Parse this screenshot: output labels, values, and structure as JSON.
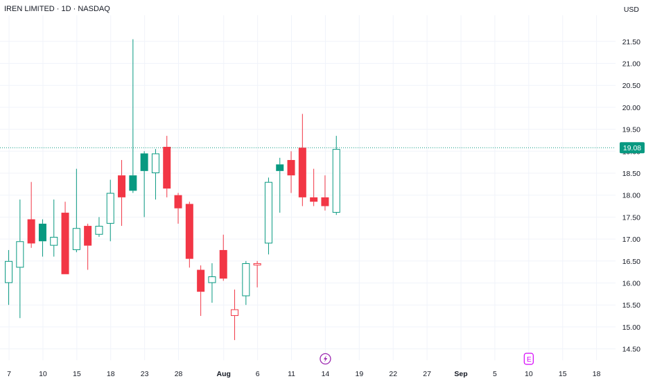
{
  "header": {
    "title": "IREN LIMITED · 1D · NASDAQ",
    "currency": "USD"
  },
  "colors": {
    "up": "#089981",
    "down": "#F23645",
    "grid": "#F0F3FA",
    "price_line": "#089981"
  },
  "icons": {
    "dividend_marker": "lightning-icon",
    "earnings_marker": "earnings-e-icon",
    "dividend_label": "⚡",
    "earnings_label": "E"
  },
  "chart_data": {
    "type": "candlestick",
    "title": "IREN LIMITED · 1D · NASDAQ",
    "current_price": 19.08,
    "current_price_label": "19.08",
    "ylim": [
      14.2,
      22.0
    ],
    "y_ticks": [
      14.5,
      15.0,
      15.5,
      16.0,
      16.5,
      17.0,
      17.5,
      18.0,
      18.5,
      19.0,
      19.5,
      20.0,
      20.5,
      21.0,
      21.5
    ],
    "y_tick_labels": [
      "14.50",
      "15.00",
      "15.50",
      "16.00",
      "16.50",
      "17.00",
      "17.50",
      "18.00",
      "18.50",
      "19.00",
      "19.50",
      "20.00",
      "20.50",
      "21.00",
      "21.50"
    ],
    "x_labels": [
      {
        "text": "7",
        "slot": 0.8,
        "bold": false
      },
      {
        "text": "10",
        "slot": 3.8,
        "bold": false
      },
      {
        "text": "15",
        "slot": 6.8,
        "bold": false
      },
      {
        "text": "18",
        "slot": 9.8,
        "bold": false
      },
      {
        "text": "23",
        "slot": 12.8,
        "bold": false
      },
      {
        "text": "28",
        "slot": 15.8,
        "bold": false
      },
      {
        "text": "Aug",
        "slot": 19.8,
        "bold": true
      },
      {
        "text": "6",
        "slot": 22.8,
        "bold": false
      },
      {
        "text": "11",
        "slot": 25.8,
        "bold": false
      },
      {
        "text": "14",
        "slot": 28.8,
        "bold": false
      },
      {
        "text": "19",
        "slot": 31.8,
        "bold": false
      },
      {
        "text": "22",
        "slot": 34.8,
        "bold": false
      },
      {
        "text": "27",
        "slot": 37.8,
        "bold": false
      },
      {
        "text": "Sep",
        "slot": 40.8,
        "bold": true
      },
      {
        "text": "5",
        "slot": 43.8,
        "bold": false
      },
      {
        "text": "10",
        "slot": 46.8,
        "bold": false
      },
      {
        "text": "15",
        "slot": 49.8,
        "bold": false
      },
      {
        "text": "18",
        "slot": 52.8,
        "bold": false
      }
    ],
    "candles": [
      {
        "o": 16.5,
        "h": 16.75,
        "l": 15.5,
        "c": 16.0,
        "style": "hollow-up"
      },
      {
        "o": 16.35,
        "h": 17.9,
        "l": 15.2,
        "c": 16.95,
        "style": "hollow-up"
      },
      {
        "o": 17.45,
        "h": 18.3,
        "l": 16.8,
        "c": 16.9,
        "style": "filled-down"
      },
      {
        "o": 16.95,
        "h": 17.45,
        "l": 16.6,
        "c": 17.35,
        "style": "filled-up"
      },
      {
        "o": 16.85,
        "h": 17.9,
        "l": 16.6,
        "c": 17.05,
        "style": "hollow-up"
      },
      {
        "o": 17.6,
        "h": 17.85,
        "l": 16.2,
        "c": 16.2,
        "style": "filled-down"
      },
      {
        "o": 16.75,
        "h": 18.6,
        "l": 16.7,
        "c": 17.25,
        "style": "hollow-up"
      },
      {
        "o": 17.3,
        "h": 17.35,
        "l": 16.3,
        "c": 16.85,
        "style": "filled-down"
      },
      {
        "o": 17.1,
        "h": 17.5,
        "l": 17.05,
        "c": 17.3,
        "style": "hollow-up"
      },
      {
        "o": 17.35,
        "h": 18.35,
        "l": 16.95,
        "c": 18.05,
        "style": "hollow-up"
      },
      {
        "o": 18.45,
        "h": 18.8,
        "l": 17.3,
        "c": 17.95,
        "style": "filled-down"
      },
      {
        "o": 18.1,
        "h": 21.55,
        "l": 18.05,
        "c": 18.45,
        "style": "filled-up"
      },
      {
        "o": 18.55,
        "h": 19.0,
        "l": 17.5,
        "c": 18.95,
        "style": "filled-up"
      },
      {
        "o": 18.5,
        "h": 19.05,
        "l": 17.9,
        "c": 18.95,
        "style": "hollow-up"
      },
      {
        "o": 19.1,
        "h": 19.35,
        "l": 17.95,
        "c": 18.15,
        "style": "filled-down"
      },
      {
        "o": 18.0,
        "h": 18.05,
        "l": 17.35,
        "c": 17.7,
        "style": "filled-down"
      },
      {
        "o": 17.8,
        "h": 17.85,
        "l": 16.35,
        "c": 16.55,
        "style": "filled-down"
      },
      {
        "o": 16.3,
        "h": 16.4,
        "l": 15.25,
        "c": 15.8,
        "style": "filled-down"
      },
      {
        "o": 16.0,
        "h": 16.45,
        "l": 15.55,
        "c": 16.15,
        "style": "hollow-up"
      },
      {
        "o": 16.75,
        "h": 17.1,
        "l": 16.05,
        "c": 16.1,
        "style": "filled-down"
      },
      {
        "o": 15.4,
        "h": 15.85,
        "l": 14.7,
        "c": 15.25,
        "style": "hollow-down"
      },
      {
        "o": 15.7,
        "h": 16.5,
        "l": 15.5,
        "c": 16.45,
        "style": "hollow-up"
      },
      {
        "o": 16.45,
        "h": 16.5,
        "l": 15.9,
        "c": 16.4,
        "style": "hollow-down"
      },
      {
        "o": 16.9,
        "h": 18.4,
        "l": 16.65,
        "c": 18.3,
        "style": "hollow-up"
      },
      {
        "o": 18.55,
        "h": 18.85,
        "l": 17.6,
        "c": 18.7,
        "style": "filled-up"
      },
      {
        "o": 18.8,
        "h": 19.0,
        "l": 18.05,
        "c": 18.45,
        "style": "filled-down"
      },
      {
        "o": 19.08,
        "h": 19.85,
        "l": 17.75,
        "c": 17.95,
        "style": "filled-down"
      },
      {
        "o": 17.95,
        "h": 18.6,
        "l": 17.75,
        "c": 17.85,
        "style": "filled-down"
      },
      {
        "o": 17.95,
        "h": 18.45,
        "l": 17.65,
        "c": 17.75,
        "style": "filled-down"
      },
      {
        "o": 17.6,
        "h": 19.35,
        "l": 17.55,
        "c": 19.05,
        "style": "hollow-up"
      }
    ],
    "markers": [
      {
        "type": "dividend",
        "slot": 28.8
      },
      {
        "type": "earnings",
        "slot": 46.8
      }
    ],
    "grid": true
  }
}
